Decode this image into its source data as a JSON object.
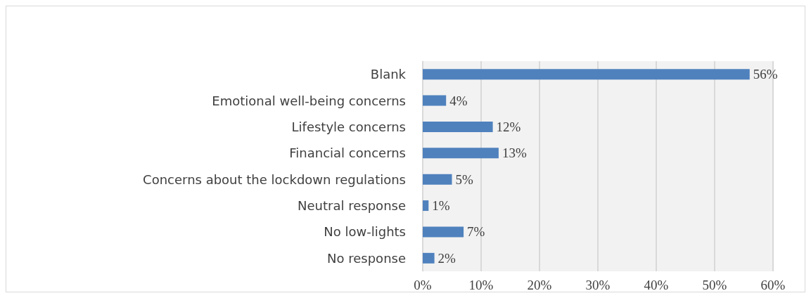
{
  "chart_data": {
    "type": "bar",
    "orientation": "horizontal",
    "categories": [
      "Blank",
      "Emotional well-being concerns",
      "Lifestyle concerns",
      "Financial concerns",
      "Concerns about the lockdown regulations",
      "Neutral response",
      "No low-lights",
      "No response"
    ],
    "values": [
      56,
      4,
      12,
      13,
      5,
      1,
      7,
      2
    ],
    "value_labels": [
      "56%",
      "4%",
      "12%",
      "13%",
      "5%",
      "1%",
      "7%",
      "2%"
    ],
    "color": "#4f81bd",
    "xlim": [
      0,
      60
    ],
    "xticks": [
      {
        "value": 0,
        "label": "0%"
      },
      {
        "value": 10,
        "label": "10%"
      },
      {
        "value": 20,
        "label": "20%"
      },
      {
        "value": 30,
        "label": "30%"
      },
      {
        "value": 40,
        "label": "40%"
      },
      {
        "value": 50,
        "label": "50%"
      },
      {
        "value": 60,
        "label": "60%"
      }
    ],
    "grid": "x"
  }
}
